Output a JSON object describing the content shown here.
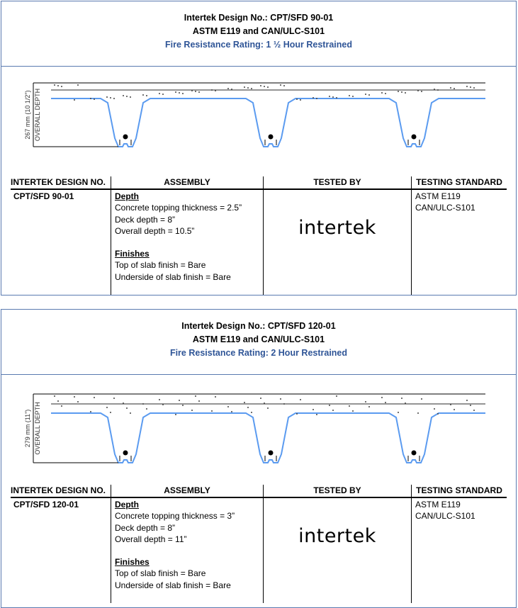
{
  "table_headers": [
    "INTERTEK DESIGN NO.",
    "ASSEMBLY",
    "TESTED BY",
    "TESTING STANDARD"
  ],
  "accent": "#2f5597",
  "deck_color": "#5b9bf0",
  "sections": [
    {
      "design_title": "Intertek Design No.: CPT/SFD 90-01",
      "standards_title": "ASTM E119 and CAN/ULC-S101",
      "rating": "Fire Resistance Rating: 1 ½ Hour Restrained",
      "dim_label": "267 mm (10 1/2\")",
      "dim_label2": "OVERALL DEPTH",
      "design_no": "CPT/SFD 90-01",
      "depth_heading": "Depth",
      "depth_lines": [
        "Concrete topping thickness = 2.5”",
        "Deck depth = 8”",
        "Overall depth = 10.5”"
      ],
      "finishes_heading": "Finishes",
      "finish_lines": [
        "Top of slab finish = Bare",
        "Underside of slab finish = Bare"
      ],
      "tested_by": "intertek",
      "standards": [
        "ASTM E119",
        "CAN/ULC-S101"
      ]
    },
    {
      "design_title": "Intertek Design No.: CPT/SFD 120-01",
      "standards_title": "ASTM E119 and CAN/ULC-S101",
      "rating": "Fire Resistance Rating: 2 Hour Restrained",
      "dim_label": "279 mm (11\")",
      "dim_label2": "OVERALL DEPTH",
      "design_no": "CPT/SFD 120-01",
      "depth_heading": "Depth",
      "depth_lines": [
        "Concrete topping thickness = 3”",
        "Deck depth = 8”",
        "Overall depth = 11”"
      ],
      "finishes_heading": "Finishes",
      "finish_lines": [
        "Top of slab finish = Bare",
        "Underside of slab finish = Bare"
      ],
      "tested_by": "intertek",
      "standards": [
        "ASTM E119",
        "CAN/ULC-S101"
      ]
    }
  ]
}
